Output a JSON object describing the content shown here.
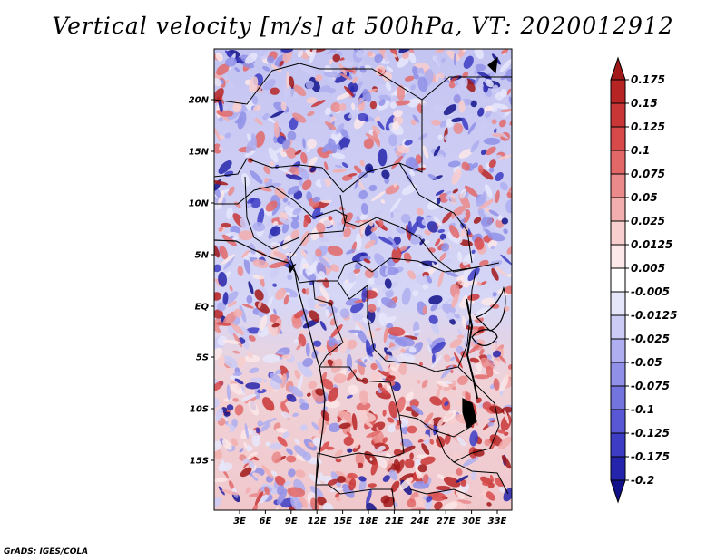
{
  "map": {
    "title": "Vertical velocity [m/s] at 500hPa, VT: 2020012912",
    "credit": "GrADS: IGES/COLA",
    "lat_labels": [
      "20N",
      "15N",
      "10N",
      "5N",
      "EQ",
      "5S",
      "10S",
      "15S"
    ],
    "lon_labels": [
      "3E",
      "6E",
      "9E",
      "12E",
      "15E",
      "18E",
      "21E",
      "24E",
      "27E",
      "30E",
      "33E"
    ],
    "colorbar": {
      "labels": [
        "0.175",
        "0.15",
        "0.125",
        "0.1",
        "0.075",
        "0.05",
        "0.025",
        "0.0125",
        "0.005",
        "-0.005",
        "-0.0125",
        "-0.025",
        "-0.05",
        "-0.075",
        "-0.1",
        "-0.125",
        "-0.175",
        "-0.2"
      ],
      "colors": [
        "#a01818",
        "#b72424",
        "#c93636",
        "#d84a4a",
        "#e26868",
        "#ea8a8a",
        "#f2aeae",
        "#f8cece",
        "#fce8e8",
        "#ffffff",
        "#e6e6fb",
        "#cbcbf6",
        "#aeaef0",
        "#9090e8",
        "#7474df",
        "#5858d4",
        "#3c3cc4",
        "#2424ac",
        "#10108a"
      ]
    }
  }
}
